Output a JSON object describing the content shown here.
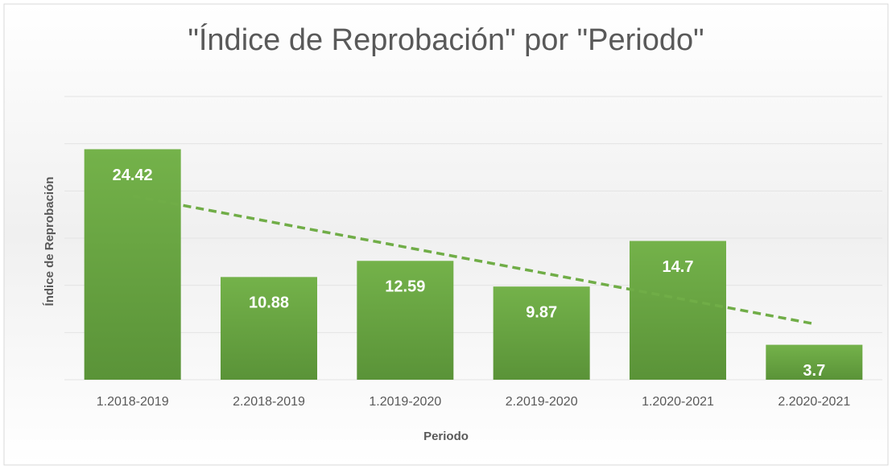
{
  "chart_data": {
    "type": "bar",
    "title": "\"Índice de Reprobación\" por \"Periodo\"",
    "x_label": "Periodo",
    "y_label": "Índice de Reprobación",
    "categories": [
      "1.2018-2019",
      "2.2018-2019",
      "1.2019-2020",
      "2.2019-2020",
      "1.2020-2021",
      "2.2020-2021"
    ],
    "values": [
      24.42,
      10.88,
      12.59,
      9.87,
      14.7,
      3.7
    ],
    "color": "#70ad47",
    "ylim": [
      0,
      30
    ],
    "yticks": [
      0,
      5,
      10,
      15,
      20,
      25,
      30
    ],
    "grid": true,
    "trendline": "linear",
    "trendline_color": "#70ad47"
  }
}
